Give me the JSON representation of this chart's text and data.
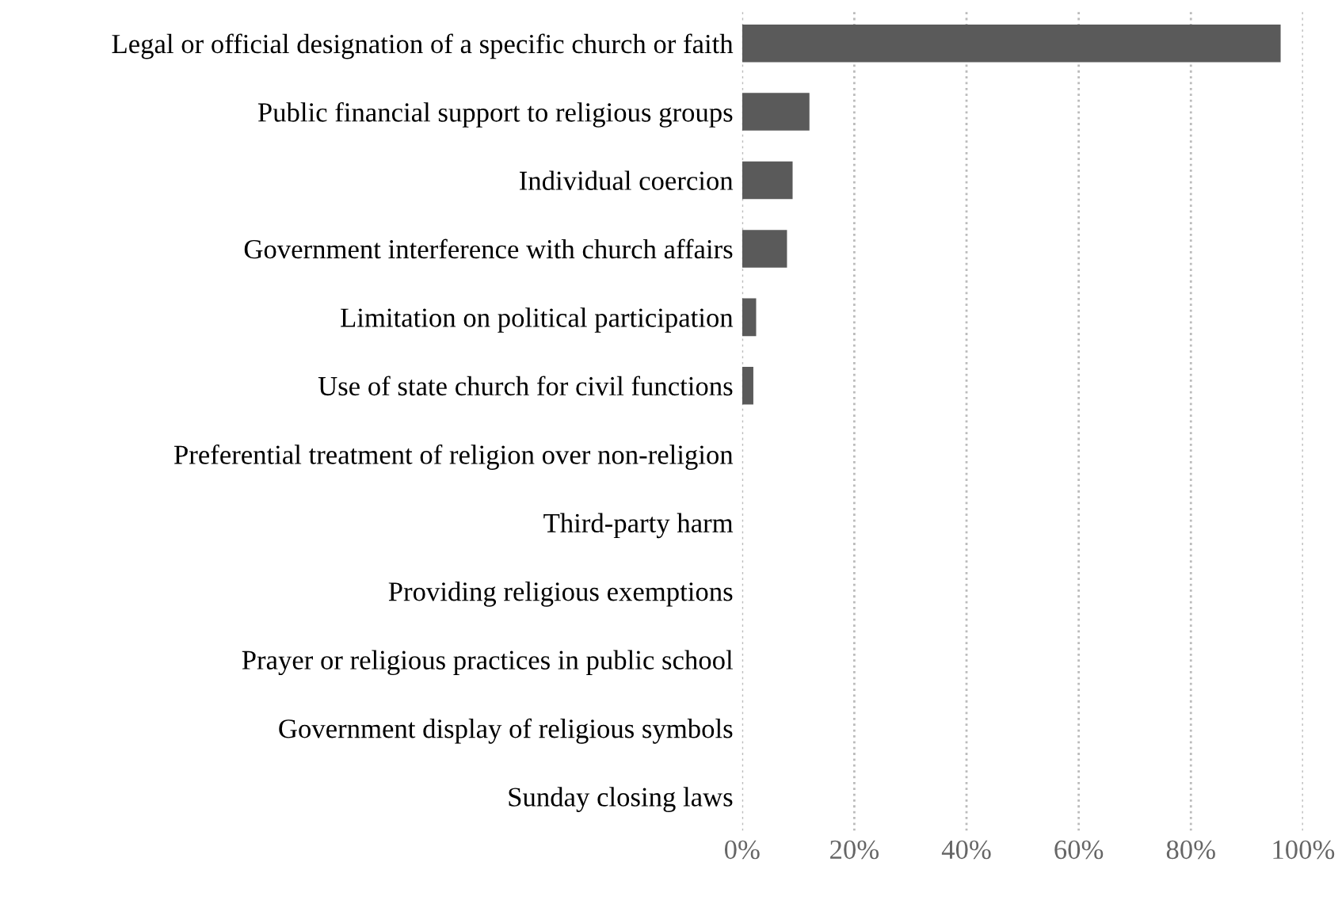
{
  "chart_data": {
    "type": "bar",
    "orientation": "horizontal",
    "categories": [
      "Legal or official designation of a specific church or faith",
      "Public financial support to religious groups",
      "Individual coercion",
      "Government interference with church affairs",
      "Limitation on political participation",
      "Use of state church for civil functions",
      "Preferential treatment of religion over non-religion",
      "Third-party harm",
      "Providing religious exemptions",
      "Prayer or religious practices in public school",
      "Government display of religious symbols",
      "Sunday closing laws"
    ],
    "values": [
      96,
      12,
      9,
      8,
      2.5,
      2,
      0,
      0,
      0,
      0,
      0,
      0
    ],
    "color": "#5a5a5a",
    "xlim": [
      0,
      100
    ],
    "xticks": [
      {
        "value": 0,
        "label": "0%"
      },
      {
        "value": 20,
        "label": "20%"
      },
      {
        "value": 40,
        "label": "40%"
      },
      {
        "value": 60,
        "label": "60%"
      },
      {
        "value": 80,
        "label": "80%"
      },
      {
        "value": 100,
        "label": "100%"
      }
    ],
    "grid": "x",
    "legend": false
  }
}
